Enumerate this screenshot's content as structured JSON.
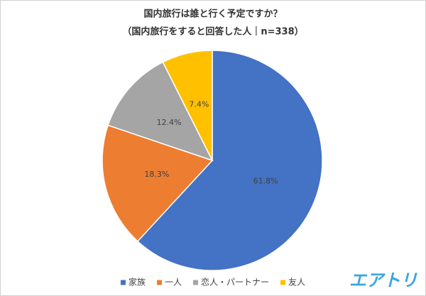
{
  "chart_data": {
    "type": "pie",
    "title": "国内旅行は誰と行く予定ですか？",
    "subtitle": "（国内旅行をすると回答した人｜n=338）",
    "categories": [
      "家族",
      "一人",
      "恋人・パートナー",
      "友人"
    ],
    "values": [
      61.8,
      18.3,
      12.4,
      7.4
    ],
    "value_labels": [
      "61.8%",
      "18.3%",
      "12.4%",
      "7.4%"
    ],
    "colors": [
      "#4472c4",
      "#ed7d31",
      "#a5a5a5",
      "#ffc000"
    ],
    "legend": "bottom"
  },
  "logo": "エアトリ"
}
